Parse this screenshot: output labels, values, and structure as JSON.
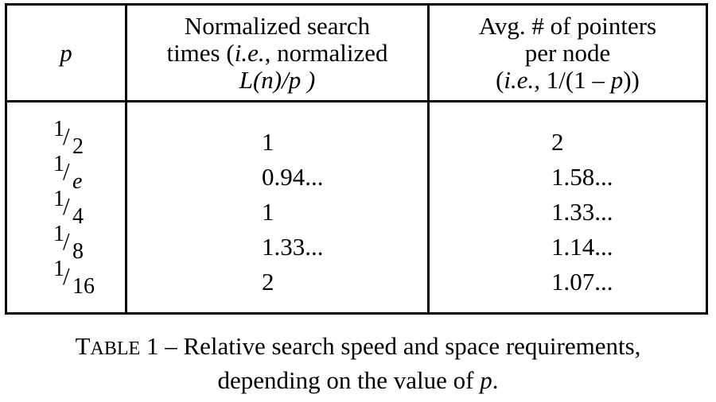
{
  "table": {
    "header": {
      "p_label": "p",
      "search_times": {
        "line1": "Normalized search",
        "line2_a": "times (",
        "line2_ie": "i.e.",
        "line2_b": ", normalized",
        "line3": "L(n)/p )"
      },
      "pointers": {
        "line1": "Avg. # of pointers",
        "line2": "per node",
        "line3_a": "(",
        "line3_ie": "i.e.,",
        "line3_b": " 1/(1 – ",
        "line3_p": "p",
        "line3_c": "))"
      }
    },
    "rows": [
      {
        "p_num": "1",
        "p_den": "2",
        "search_time": "1",
        "avg_pointers": "2"
      },
      {
        "p_num": "1",
        "p_den": "e",
        "search_time": "0.94...",
        "avg_pointers": "1.58..."
      },
      {
        "p_num": "1",
        "p_den": "4",
        "search_time": "1",
        "avg_pointers": "1.33..."
      },
      {
        "p_num": "1",
        "p_den": "8",
        "search_time": "1.33...",
        "avg_pointers": "1.14..."
      },
      {
        "p_num": "1",
        "p_den": "16",
        "search_time": "2",
        "avg_pointers": "1.07..."
      }
    ]
  },
  "caption": {
    "label_T": "T",
    "label_rest": "ABLE",
    "number": " 1",
    "text_line1": " – Relative search speed and space requirements,",
    "text_line2_a": "depending on the value of ",
    "text_line2_p": "p",
    "text_line2_b": "."
  }
}
